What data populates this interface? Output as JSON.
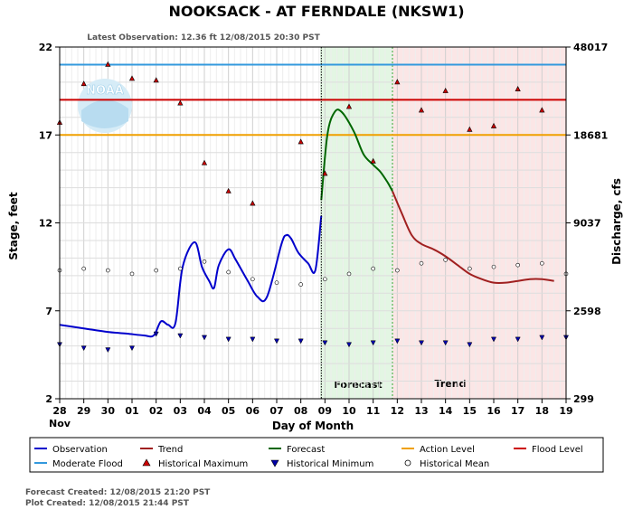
{
  "chart_data": {
    "type": "line",
    "title": "NOOKSACK - AT FERNDALE  (NKSW1)",
    "subtitle": "Latest Observation: 12.36 ft 12/08/2015 20:30 PST",
    "xlabel": "Day of Month",
    "ylabel_left": "Stage, feet",
    "ylabel_right": "Discharge, cfs",
    "x_month_label": "Nov",
    "x_ticks": [
      "28",
      "29",
      "30",
      "01",
      "02",
      "03",
      "04",
      "05",
      "06",
      "07",
      "08",
      "09",
      "10",
      "11",
      "12",
      "13",
      "14",
      "15",
      "16",
      "17",
      "18",
      "19"
    ],
    "xlim": [
      0,
      21
    ],
    "ylim": [
      2,
      22
    ],
    "y_ticks_left": [
      "2",
      "7",
      "12",
      "17",
      "22"
    ],
    "y_ticks_right": [
      "299",
      "2598",
      "9037",
      "18681",
      "48017"
    ],
    "grid": true,
    "logo_text": "NOAA",
    "region_labels": {
      "forecast": "Forecast",
      "trend": "Trend"
    },
    "regions": {
      "forecast": {
        "start": 10.8,
        "end": 13.8,
        "color": "#e3f6e3"
      },
      "trend": {
        "start": 13.8,
        "end": 21,
        "color": "#fbe6e6"
      }
    },
    "levels": [
      {
        "name": "Moderate Flood",
        "value": 21.0,
        "color": "#3399dd"
      },
      {
        "name": "Flood Level",
        "value": 19.0,
        "color": "#cc0000"
      },
      {
        "name": "Action Level",
        "value": 17.0,
        "color": "#f0a000"
      }
    ],
    "series": [
      {
        "name": "Observation",
        "color": "#0000cc",
        "x": [
          0,
          1,
          2,
          2.8,
          3.5,
          3.9,
          4.2,
          4.5,
          4.8,
          5.1,
          5.6,
          5.9,
          6.2,
          6.4,
          6.6,
          7.0,
          7.3,
          7.8,
          8.2,
          8.6,
          9.2,
          9.4,
          9.6,
          9.9,
          10.3,
          10.6,
          10.85
        ],
        "y": [
          6.2,
          6.0,
          5.8,
          5.7,
          5.6,
          5.6,
          6.4,
          6.2,
          6.3,
          9.5,
          10.9,
          9.5,
          8.7,
          8.3,
          9.6,
          10.5,
          9.9,
          8.7,
          7.8,
          7.8,
          10.8,
          11.3,
          11.1,
          10.3,
          9.7,
          9.3,
          12.4
        ]
      },
      {
        "name": "Forecast",
        "color": "#006600",
        "x": [
          10.85,
          11.1,
          11.4,
          11.7,
          12.2,
          12.6,
          13.0,
          13.3,
          13.6,
          13.8
        ],
        "y": [
          13.3,
          17.0,
          18.3,
          18.3,
          17.2,
          15.9,
          15.3,
          14.9,
          14.3,
          13.8
        ]
      },
      {
        "name": "Trend",
        "color": "#a02020",
        "x": [
          13.8,
          14.2,
          14.6,
          15.0,
          15.5,
          16.0,
          16.5,
          17.0,
          17.5,
          18.0,
          18.5,
          19.0,
          19.5,
          20.0,
          20.5
        ],
        "y": [
          13.8,
          12.5,
          11.3,
          10.8,
          10.5,
          10.1,
          9.6,
          9.1,
          8.8,
          8.6,
          8.6,
          8.7,
          8.8,
          8.8,
          8.7
        ]
      }
    ],
    "historical_maximum": {
      "x": [
        0,
        1,
        2,
        3,
        4,
        5,
        6,
        7,
        8,
        9,
        10,
        11,
        12,
        13,
        14,
        15,
        16,
        17,
        18,
        19,
        20,
        21
      ],
      "y": [
        17.7,
        19.9,
        21.0,
        20.2,
        20.1,
        18.8,
        15.4,
        13.8,
        13.1,
        null,
        16.6,
        14.8,
        18.6,
        15.5,
        20.0,
        18.4,
        19.5,
        17.3,
        17.5,
        19.6,
        18.4,
        null
      ]
    },
    "historical_mean": {
      "x": [
        0,
        1,
        2,
        3,
        4,
        5,
        6,
        7,
        8,
        9,
        10,
        11,
        12,
        13,
        14,
        15,
        16,
        17,
        18,
        19,
        20,
        21
      ],
      "y": [
        9.3,
        9.4,
        9.3,
        9.1,
        9.3,
        9.4,
        9.8,
        9.2,
        8.8,
        8.6,
        8.5,
        8.8,
        9.1,
        9.4,
        9.3,
        9.7,
        9.9,
        9.4,
        9.5,
        9.6,
        9.7,
        9.1
      ]
    },
    "historical_minimum": {
      "x": [
        0,
        1,
        2,
        3,
        4,
        5,
        6,
        7,
        8,
        9,
        10,
        11,
        12,
        13,
        14,
        15,
        16,
        17,
        18,
        19,
        20,
        21
      ],
      "y": [
        5.1,
        4.9,
        4.8,
        4.9,
        5.7,
        5.6,
        5.5,
        5.4,
        5.4,
        5.3,
        5.3,
        5.2,
        5.1,
        5.2,
        5.3,
        5.2,
        5.2,
        5.1,
        5.4,
        5.4,
        5.5,
        5.5
      ]
    }
  },
  "legend": [
    {
      "label": "Observation",
      "kind": "line",
      "color": "#0000cc"
    },
    {
      "label": "Trend",
      "kind": "line",
      "color": "#a02020"
    },
    {
      "label": "Forecast",
      "kind": "line",
      "color": "#006600"
    },
    {
      "label": "Action Level",
      "kind": "line",
      "color": "#f0a000"
    },
    {
      "label": "Flood Level",
      "kind": "line",
      "color": "#cc0000"
    },
    {
      "label": "Moderate Flood",
      "kind": "line",
      "color": "#3399dd"
    },
    {
      "label": "Historical Maximum",
      "kind": "tri-up",
      "color": "#cc0000"
    },
    {
      "label": "Historical Minimum",
      "kind": "tri-down",
      "color": "#0000aa"
    },
    {
      "label": "Historical Mean",
      "kind": "circle",
      "color": "#000000"
    }
  ],
  "footer": {
    "forecast_created": "Forecast Created: 12/08/2015 21:20 PST",
    "plot_created": "Plot Created: 12/08/2015 21:44 PST"
  }
}
